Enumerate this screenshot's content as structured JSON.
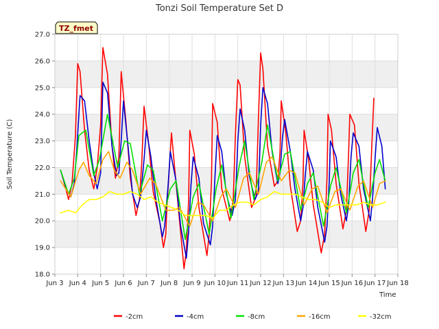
{
  "chart_data": {
    "type": "line",
    "title": "Tonzi Soil Temperature Set D",
    "xlabel": "Time",
    "ylabel": "Soil Temperature (C)",
    "site_label": "TZ_fmet",
    "ylim": [
      18.0,
      27.0
    ],
    "xlim": [
      3,
      18
    ],
    "y_ticks": [
      "18.0",
      "19.0",
      "20.0",
      "21.0",
      "22.0",
      "23.0",
      "24.0",
      "25.0",
      "26.0",
      "27.0"
    ],
    "x_ticks": [
      "Jun 3",
      "Jun 4",
      "Jun 5",
      "Jun 6",
      "Jun 7",
      "Jun 8",
      "Jun 9",
      "Jun 10",
      "Jun 11",
      "Jun 12",
      "Jun 13",
      "Jun 14",
      "Jun 15",
      "Jun 16",
      "Jun 17",
      "Jun 18"
    ],
    "grid": true,
    "legend_position": "bottom",
    "series": [
      {
        "name": "-2cm",
        "color": "#ff0000",
        "x": [
          3.25,
          3.45,
          3.6,
          3.75,
          3.9,
          4.0,
          4.1,
          4.3,
          4.5,
          4.7,
          4.85,
          5.0,
          5.1,
          5.3,
          5.5,
          5.65,
          5.8,
          5.9,
          6.1,
          6.3,
          6.55,
          6.7,
          6.8,
          6.9,
          7.1,
          7.3,
          7.6,
          7.75,
          7.85,
          7.9,
          8.1,
          8.3,
          8.65,
          8.75,
          8.85,
          8.9,
          9.1,
          9.3,
          9.65,
          9.75,
          9.85,
          9.9,
          10.1,
          10.3,
          10.65,
          10.8,
          10.9,
          11.0,
          11.1,
          11.3,
          11.6,
          11.8,
          11.9,
          12.0,
          12.1,
          12.3,
          12.6,
          12.75,
          12.85,
          12.9,
          13.1,
          13.3,
          13.6,
          13.75,
          13.85,
          13.9,
          14.1,
          14.3,
          14.65,
          14.8,
          14.9,
          14.95,
          15.1,
          15.3,
          15.6,
          15.75,
          15.85,
          15.9,
          16.1,
          16.3,
          16.6,
          16.75,
          16.85,
          16.95
        ],
        "values": [
          21.9,
          21.3,
          20.8,
          21.4,
          23.2,
          25.9,
          25.6,
          23.4,
          21.9,
          21.2,
          22.0,
          23.6,
          26.5,
          25.5,
          22.8,
          21.6,
          22.4,
          25.6,
          23.8,
          21.6,
          20.2,
          20.8,
          22.2,
          24.3,
          22.9,
          21.1,
          19.9,
          19.0,
          19.5,
          20.5,
          23.3,
          21.4,
          18.2,
          18.9,
          20.8,
          23.4,
          22.5,
          20.5,
          18.7,
          19.5,
          21.5,
          24.4,
          23.7,
          21.2,
          20.0,
          20.8,
          23.3,
          25.3,
          25.1,
          22.4,
          20.5,
          20.9,
          23.8,
          26.3,
          25.7,
          22.8,
          21.3,
          21.5,
          22.6,
          24.5,
          23.3,
          21.3,
          19.6,
          20.0,
          21.4,
          23.4,
          22.3,
          20.6,
          18.8,
          19.5,
          21.6,
          24.0,
          23.4,
          21.4,
          19.7,
          20.4,
          22.6,
          24.0,
          23.6,
          21.4,
          19.6,
          20.4,
          22.6,
          24.6
        ]
      },
      {
        "name": "-4cm",
        "color": "#0000cc",
        "x": [
          3.25,
          3.5,
          3.7,
          3.85,
          3.95,
          4.1,
          4.3,
          4.5,
          4.7,
          4.85,
          5.0,
          5.1,
          5.3,
          5.5,
          5.7,
          5.8,
          5.9,
          6.0,
          6.2,
          6.4,
          6.6,
          6.75,
          6.9,
          7.0,
          7.2,
          7.4,
          7.7,
          7.8,
          7.95,
          8.05,
          8.3,
          8.5,
          8.75,
          8.85,
          8.95,
          9.05,
          9.3,
          9.5,
          9.8,
          9.9,
          10.0,
          10.1,
          10.3,
          10.5,
          10.75,
          10.9,
          11.0,
          11.1,
          11.3,
          11.5,
          11.75,
          11.9,
          12.0,
          12.1,
          12.3,
          12.5,
          12.75,
          12.85,
          12.95,
          13.05,
          13.3,
          13.5,
          13.75,
          13.85,
          13.95,
          14.05,
          14.3,
          14.5,
          14.8,
          14.9,
          15.0,
          15.05,
          15.3,
          15.5,
          15.75,
          15.85,
          15.95,
          16.05,
          16.3,
          16.5,
          16.8,
          16.9,
          17.0,
          17.1,
          17.3,
          17.45
        ],
        "values": [
          21.9,
          21.2,
          20.9,
          21.4,
          22.6,
          24.7,
          24.5,
          23.0,
          21.8,
          21.2,
          21.8,
          25.2,
          24.8,
          22.8,
          21.7,
          21.8,
          23.0,
          24.5,
          22.8,
          21.0,
          20.5,
          20.9,
          22.3,
          23.4,
          22.4,
          20.9,
          19.4,
          19.8,
          21.3,
          22.6,
          21.5,
          19.8,
          18.6,
          19.6,
          21.3,
          22.4,
          21.6,
          19.9,
          19.1,
          19.8,
          21.6,
          23.2,
          22.6,
          21.0,
          20.2,
          20.8,
          23.0,
          24.2,
          23.4,
          21.7,
          20.8,
          21.1,
          23.6,
          25.0,
          24.4,
          22.6,
          21.4,
          21.8,
          23.1,
          23.8,
          22.6,
          21.2,
          20.0,
          20.5,
          21.7,
          22.6,
          21.9,
          20.5,
          19.2,
          19.8,
          21.5,
          23.0,
          22.4,
          21.0,
          20.0,
          20.6,
          22.4,
          23.3,
          22.8,
          21.2,
          20.0,
          20.9,
          22.3,
          23.5,
          22.8,
          21.2
        ]
      },
      {
        "name": "-8cm",
        "color": "#00e000",
        "x": [
          3.25,
          3.6,
          3.85,
          4.05,
          4.35,
          4.7,
          4.95,
          5.3,
          5.75,
          6.05,
          6.3,
          6.7,
          7.05,
          7.3,
          7.7,
          8.05,
          8.3,
          8.7,
          9.05,
          9.3,
          9.75,
          10.05,
          10.3,
          10.7,
          11.05,
          11.3,
          11.7,
          12.05,
          12.3,
          12.75,
          13.05,
          13.3,
          13.75,
          14.05,
          14.3,
          14.75,
          15.05,
          15.3,
          15.75,
          16.05,
          16.3,
          16.7,
          17.0,
          17.2,
          17.45
        ],
        "values": [
          21.9,
          21.0,
          21.6,
          23.2,
          23.4,
          21.7,
          22.3,
          24.0,
          22.0,
          23.0,
          22.9,
          21.0,
          22.1,
          21.9,
          20.0,
          21.2,
          21.5,
          19.3,
          20.9,
          21.4,
          19.5,
          21.2,
          22.1,
          20.1,
          22.0,
          23.0,
          20.8,
          22.2,
          23.6,
          21.5,
          22.5,
          22.6,
          20.4,
          21.4,
          21.8,
          19.8,
          21.3,
          22.0,
          20.3,
          21.8,
          22.3,
          20.5,
          21.8,
          22.3,
          21.5
        ]
      },
      {
        "name": "-16cm",
        "color": "#ffa500",
        "x": [
          3.25,
          3.7,
          4.05,
          4.25,
          4.5,
          4.8,
          5.1,
          5.35,
          5.6,
          5.85,
          6.15,
          6.4,
          6.75,
          7.15,
          7.4,
          7.85,
          8.2,
          8.45,
          8.9,
          9.25,
          9.5,
          9.9,
          10.25,
          10.5,
          10.9,
          11.25,
          11.5,
          11.9,
          12.25,
          12.5,
          12.9,
          13.25,
          13.5,
          13.9,
          14.25,
          14.5,
          14.9,
          15.25,
          15.5,
          15.9,
          16.25,
          16.5,
          16.9,
          17.2,
          17.45
        ],
        "values": [
          21.5,
          20.9,
          21.9,
          22.2,
          21.7,
          21.4,
          22.3,
          22.6,
          21.9,
          21.6,
          22.2,
          21.9,
          21.0,
          21.6,
          21.4,
          20.4,
          20.4,
          20.5,
          19.8,
          20.7,
          20.6,
          20.0,
          20.9,
          21.2,
          20.5,
          21.6,
          21.8,
          21.0,
          22.2,
          22.4,
          21.5,
          21.9,
          21.8,
          20.6,
          21.2,
          21.3,
          20.3,
          21.1,
          21.2,
          20.4,
          21.3,
          21.5,
          20.5,
          21.4,
          21.5
        ]
      },
      {
        "name": "-32cm",
        "color": "#ffff00",
        "x": [
          3.25,
          3.6,
          3.9,
          4.2,
          4.5,
          4.8,
          5.1,
          5.4,
          5.7,
          6.0,
          6.3,
          6.6,
          6.9,
          7.2,
          7.5,
          7.8,
          8.1,
          8.4,
          8.7,
          9.0,
          9.3,
          9.6,
          9.9,
          10.2,
          10.5,
          10.8,
          11.1,
          11.4,
          11.7,
          12.0,
          12.3,
          12.6,
          12.9,
          13.2,
          13.5,
          13.8,
          14.1,
          14.4,
          14.7,
          15.0,
          15.3,
          15.6,
          15.9,
          16.2,
          16.5,
          16.8,
          17.1,
          17.45
        ],
        "values": [
          20.3,
          20.4,
          20.3,
          20.6,
          20.8,
          20.8,
          20.9,
          21.1,
          21.0,
          21.0,
          21.1,
          21.0,
          20.8,
          20.9,
          20.7,
          20.6,
          20.5,
          20.4,
          20.2,
          20.2,
          20.2,
          20.2,
          20.1,
          20.4,
          20.4,
          20.6,
          20.7,
          20.7,
          20.6,
          20.8,
          20.9,
          21.1,
          21.0,
          21.0,
          21.0,
          20.9,
          20.8,
          20.8,
          20.7,
          20.5,
          20.6,
          20.6,
          20.6,
          20.6,
          20.7,
          20.6,
          20.6,
          20.7
        ]
      }
    ]
  }
}
